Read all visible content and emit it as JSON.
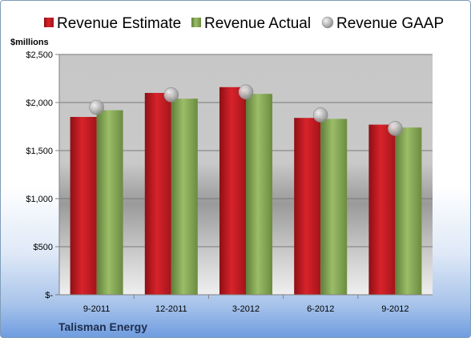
{
  "chart_data": {
    "type": "bar",
    "unit_label": "$millions",
    "categories": [
      "9-2011",
      "12-2011",
      "3-2012",
      "6-2012",
      "9-2012"
    ],
    "series": [
      {
        "name": "Revenue Estimate",
        "kind": "bar",
        "color": "#cc1f26",
        "values": [
          1850,
          2100,
          2160,
          1840,
          1770
        ]
      },
      {
        "name": "Revenue Actual",
        "kind": "bar",
        "color": "#8fb25e",
        "values": [
          1920,
          2040,
          2090,
          1830,
          1740
        ]
      },
      {
        "name": "Revenue GAAP",
        "kind": "marker",
        "color": "#b9b9b9",
        "values": [
          1950,
          2080,
          2110,
          1870,
          1730
        ]
      }
    ],
    "y_ticks": [
      0,
      500,
      1000,
      1500,
      2000,
      2500
    ],
    "y_tick_labels": [
      "$-",
      "$500",
      "$1,000",
      "$1,500",
      "$2,000",
      "$2,500"
    ],
    "ylim": [
      0,
      2500
    ],
    "grid": true,
    "legend": "top",
    "company": "Talisman Energy"
  }
}
